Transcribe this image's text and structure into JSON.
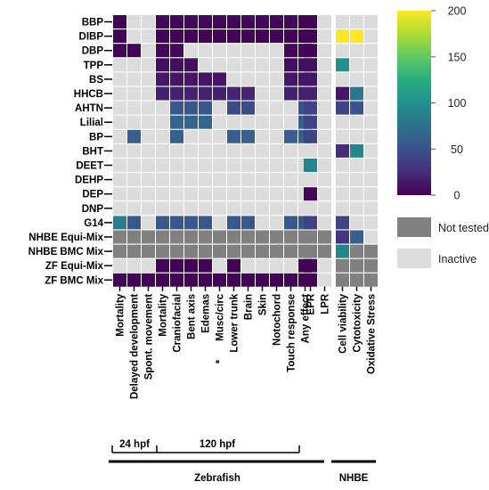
{
  "chart_data": {
    "type": "heatmap",
    "rows": [
      "BBP",
      "DIBP",
      "DBP",
      "TPP",
      "BS",
      "HHCB",
      "AHTN",
      "Lilial",
      "BP",
      "BHT",
      "DEET",
      "DEHP",
      "DEP",
      "DNP",
      "G14",
      "NHBE Equi-Mix",
      "NHBE BMC Mix",
      "ZF Equi-Mix",
      "ZF BMC Mix"
    ],
    "columns": [
      "Mortality",
      "Delayed development",
      "Spont. movement",
      "Mortality",
      "Craniofacial",
      "Bent axis",
      "Edemas",
      "Musc/circ",
      "Lower trunk",
      "Brain",
      "Skin",
      "Notochord",
      "Touch response",
      "Any effect",
      "EPR",
      "LPR",
      "Cell viability",
      "Cytotoxicity",
      "Oxidative Stress"
    ],
    "column_marks": [
      "",
      "",
      "",
      "",
      "",
      "",
      "",
      "*",
      "",
      "",
      "",
      "",
      "",
      "",
      "",
      "",
      "",
      "",
      ""
    ],
    "panels": [
      [
        0,
        13
      ],
      [
        14,
        15
      ],
      [
        16,
        18
      ]
    ],
    "values": [
      [
        2,
        "I",
        "I",
        4,
        4,
        4,
        4,
        4,
        4,
        4,
        4,
        4,
        4,
        2,
        2,
        "I",
        "I",
        "I",
        "I"
      ],
      [
        2,
        "I",
        "I",
        2,
        2,
        2,
        2,
        2,
        2,
        2,
        2,
        2,
        2,
        2,
        2,
        "I",
        200,
        200,
        "I"
      ],
      [
        2,
        2,
        "I",
        4,
        4,
        "I",
        "I",
        "I",
        "I",
        "I",
        "I",
        "I",
        4,
        4,
        2,
        "I",
        "I",
        "I",
        "I"
      ],
      [
        "I",
        "I",
        "I",
        8,
        8,
        8,
        "I",
        "I",
        "I",
        "I",
        "I",
        "I",
        8,
        8,
        8,
        "I",
        100,
        "I",
        "I"
      ],
      [
        "I",
        "I",
        "I",
        12,
        12,
        12,
        12,
        12,
        "I",
        "I",
        "I",
        "I",
        12,
        12,
        12,
        "I",
        "I",
        "I",
        "I"
      ],
      [
        "I",
        "I",
        "I",
        18,
        18,
        18,
        18,
        18,
        20,
        20,
        "I",
        "I",
        18,
        18,
        18,
        "I",
        12,
        80,
        "I"
      ],
      [
        "I",
        "I",
        "I",
        "I",
        55,
        55,
        55,
        "I",
        45,
        45,
        "I",
        "I",
        "I",
        50,
        40,
        "I",
        40,
        50,
        "I"
      ],
      [
        "I",
        "I",
        "I",
        "I",
        65,
        65,
        65,
        "I",
        "I",
        "I",
        "I",
        "I",
        "I",
        60,
        40,
        "I",
        "I",
        "I",
        "I"
      ],
      [
        "I",
        60,
        "I",
        "I",
        60,
        "I",
        "I",
        "I",
        60,
        60,
        "I",
        "I",
        60,
        60,
        40,
        "I",
        "I",
        "I",
        "I"
      ],
      [
        "I",
        "I",
        "I",
        "I",
        "I",
        "I",
        "I",
        "I",
        "I",
        "I",
        "I",
        "I",
        "I",
        "I",
        "I",
        "I",
        25,
        90,
        "I"
      ],
      [
        "I",
        "I",
        "I",
        "I",
        "I",
        "I",
        "I",
        "I",
        "I",
        "I",
        "I",
        "I",
        "I",
        "I",
        90,
        "I",
        "I",
        "I",
        "I"
      ],
      [
        "I",
        "I",
        "I",
        "I",
        "I",
        "I",
        "I",
        "I",
        "I",
        "I",
        "I",
        "I",
        "I",
        "I",
        "I",
        "I",
        "I",
        "I",
        "I"
      ],
      [
        "I",
        "I",
        "I",
        "I",
        "I",
        "I",
        "I",
        "I",
        "I",
        "I",
        "I",
        "I",
        "I",
        "I",
        2,
        "I",
        "I",
        "I",
        "I"
      ],
      [
        "I",
        "I",
        "I",
        "I",
        "I",
        "I",
        "I",
        "I",
        "I",
        "I",
        "I",
        "I",
        "I",
        "I",
        "I",
        "I",
        "I",
        "I",
        "I"
      ],
      [
        85,
        55,
        "I",
        55,
        55,
        55,
        55,
        "I",
        55,
        55,
        "I",
        "I",
        55,
        55,
        40,
        "I",
        40,
        "I",
        "I"
      ],
      [
        "N",
        "N",
        "N",
        "N",
        "N",
        "N",
        "N",
        "N",
        "N",
        "N",
        "N",
        "N",
        "N",
        "N",
        "N",
        "N",
        30,
        60,
        "I"
      ],
      [
        "N",
        "N",
        "N",
        "N",
        "N",
        "N",
        "N",
        "N",
        "N",
        "N",
        "N",
        "N",
        "N",
        "N",
        "N",
        "N",
        90,
        "N",
        "N"
      ],
      [
        "I",
        "I",
        "I",
        2,
        2,
        2,
        2,
        "I",
        2,
        "I",
        "I",
        "I",
        "I",
        2,
        2,
        "I",
        "N",
        "N",
        "N"
      ],
      [
        2,
        2,
        2,
        2,
        2,
        2,
        2,
        2,
        2,
        2,
        2,
        2,
        2,
        2,
        2,
        "I",
        "N",
        "N",
        "N"
      ]
    ],
    "colorscale": {
      "name": "viridis",
      "min": 0,
      "max": 200,
      "ticks": [
        0,
        50,
        100,
        150,
        200
      ]
    },
    "legend": {
      "not_tested": {
        "label": "Not tested",
        "color": "#808080"
      },
      "inactive": {
        "label": "Inactive",
        "color": "#dcdcdc"
      }
    },
    "groups": [
      {
        "label": "24 hpf",
        "from": 0,
        "to": 2
      },
      {
        "label": "120 hpf",
        "from": 3,
        "to": 15
      },
      {
        "label": "Zebrafish",
        "from": 0,
        "to": 15
      },
      {
        "label": "NHBE",
        "from": 16,
        "to": 18
      }
    ]
  }
}
